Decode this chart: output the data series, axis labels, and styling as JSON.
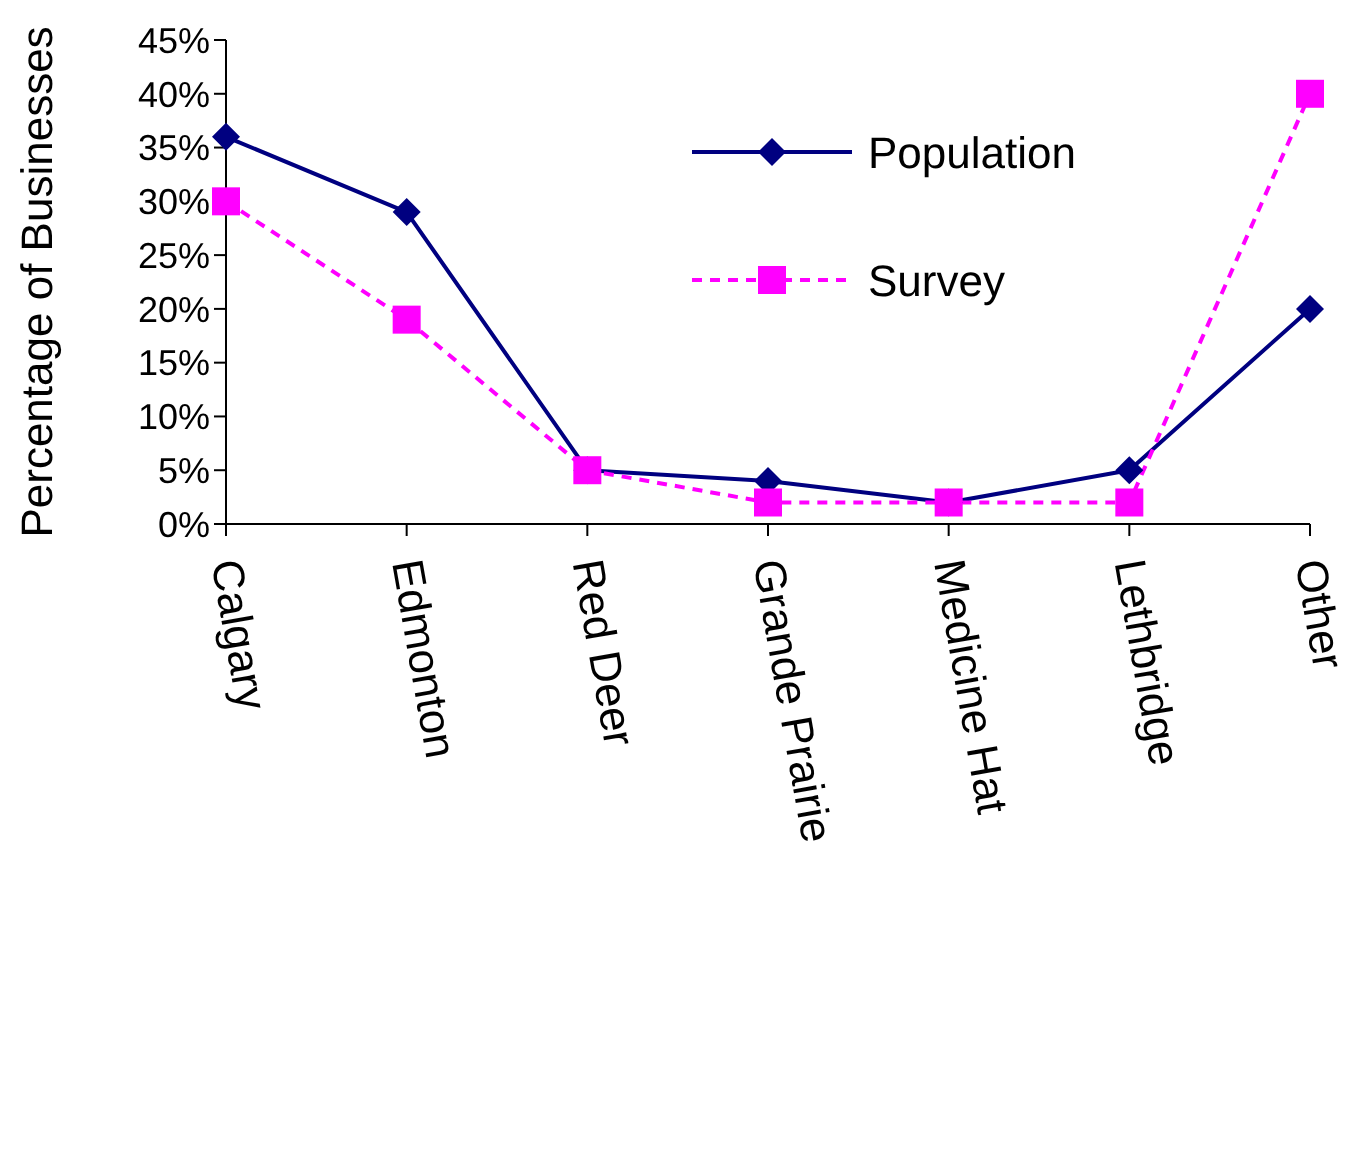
{
  "chart_data": {
    "type": "line",
    "ylabel": "Percentage of Businesses",
    "categories": [
      "Calgary",
      "Edmonton",
      "Red Deer",
      "Grande Prairie",
      "Medicine Hat",
      "Lethbridge",
      "Other"
    ],
    "series": [
      {
        "name": "Population",
        "color": "#000080",
        "values": [
          36,
          29,
          5,
          4,
          2,
          5,
          20
        ],
        "marker": "diamond",
        "line_style": "solid"
      },
      {
        "name": "Survey",
        "color": "#ff00ff",
        "values": [
          30,
          19,
          5,
          2,
          2,
          2,
          40
        ],
        "marker": "square",
        "line_style": "dashed"
      }
    ],
    "ylim": [
      0,
      45
    ],
    "yticks": [
      {
        "value": 0,
        "label": "0%"
      },
      {
        "value": 5,
        "label": "5%"
      },
      {
        "value": 10,
        "label": "10%"
      },
      {
        "value": 15,
        "label": "15%"
      },
      {
        "value": 20,
        "label": "20%"
      },
      {
        "value": 25,
        "label": "25%"
      },
      {
        "value": 30,
        "label": "30%"
      },
      {
        "value": 35,
        "label": "35%"
      },
      {
        "value": 40,
        "label": "40%"
      },
      {
        "value": 45,
        "label": "45%"
      }
    ],
    "legend": "top right",
    "grid": false
  }
}
